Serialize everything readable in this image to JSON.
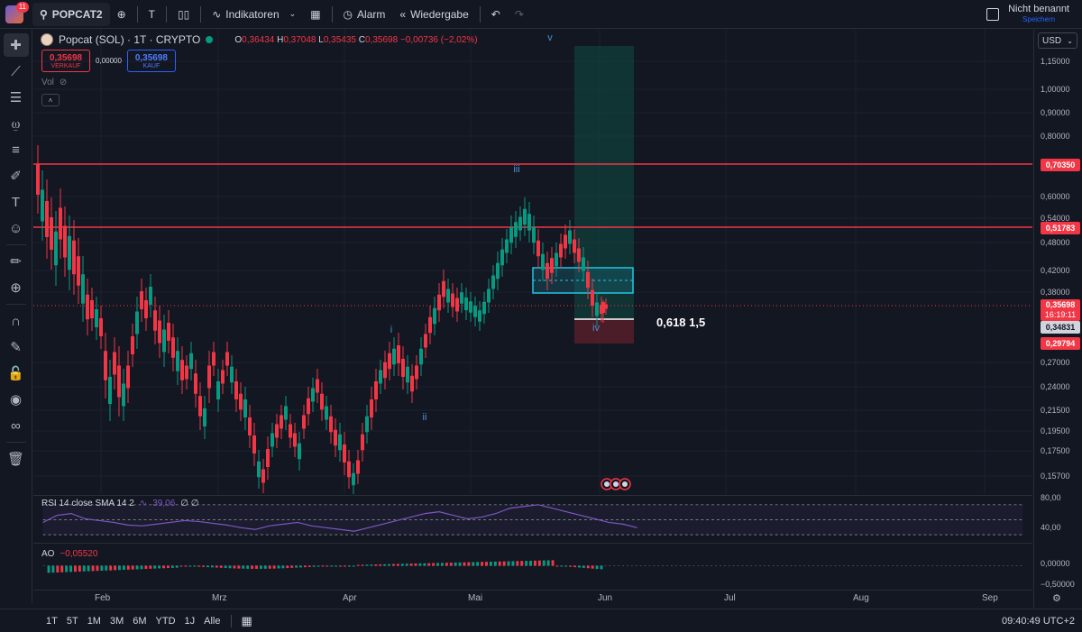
{
  "topbar": {
    "logo_badge": "11",
    "symbol": "POPCAT2",
    "interval": "T",
    "indicators": "Indikatoren",
    "alarm": "Alarm",
    "replay": "Wiedergabe",
    "layout_name": "Nicht benannt",
    "save_label": "Speichern"
  },
  "legend": {
    "title": "Popcat (SOL) · 1T · CRYPTO",
    "open_key": "O",
    "open": "0,36434",
    "high_key": "H",
    "high": "0,37048",
    "low_key": "L",
    "low": "0,35435",
    "close_key": "C",
    "close": "0,35698",
    "change": "−0,00736 (−2,02%)",
    "sell_value": "0,35698",
    "sell_label": "VERKAUF",
    "spread": "0,00000",
    "buy_value": "0,35698",
    "buy_label": "KAUF",
    "vol_label": "Vol"
  },
  "currency": "USD",
  "price_axis": {
    "ticks": [
      "1,15000",
      "1,00000",
      "0,90000",
      "0,80000",
      "0,60000",
      "0,54000",
      "0,48000",
      "0,42000",
      "0,38000",
      "0,27000",
      "0,24000",
      "0,21500",
      "0,19500",
      "0,17500",
      "0,15700"
    ],
    "tags": {
      "line_top": "0,70350",
      "line_mid": "0,51783",
      "current": "0,35698",
      "countdown": "16:19:11",
      "box_low": "0,34831",
      "stop": "0,29794"
    }
  },
  "rsi": {
    "label": "RSI 14 close SMA 14 2",
    "value": "39,06",
    "extra": "∅ ∅",
    "ticks": [
      "80,00",
      "40,00"
    ]
  },
  "ao": {
    "label": "AO",
    "value": "−0,05520",
    "ticks": [
      "0,00000",
      "−0,50000"
    ]
  },
  "time_axis": [
    "Feb",
    "Mrz",
    "Apr",
    "Mai",
    "Jun",
    "Jul",
    "Aug",
    "Sep"
  ],
  "waves": {
    "v": "v",
    "iii": "iii",
    "i": "i",
    "ii": "ii",
    "iv": "iv"
  },
  "fib_label": "0,618  1,5",
  "ranges": [
    "1T",
    "5T",
    "1M",
    "3M",
    "6M",
    "YTD",
    "1J",
    "Alle"
  ],
  "clock": "09:40:49 UTC+2",
  "colors": {
    "up": "#089981",
    "down": "#f23645",
    "bg": "#131722",
    "accent": "#2962ff"
  }
}
